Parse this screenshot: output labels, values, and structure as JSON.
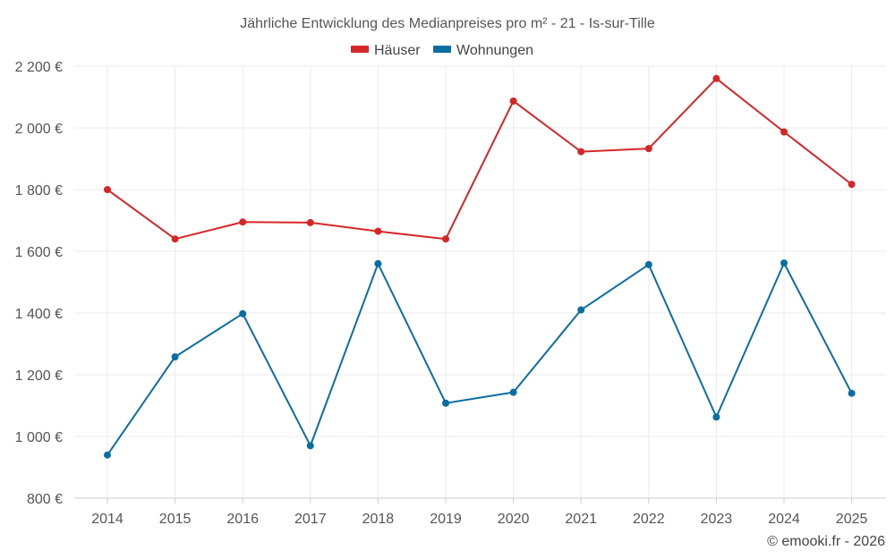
{
  "chart_data": {
    "type": "line",
    "title": "Jährliche Entwicklung des Medianpreises pro m² - 21 - Is-sur-Tille",
    "categories": [
      "2014",
      "2015",
      "2016",
      "2017",
      "2018",
      "2019",
      "2020",
      "2021",
      "2022",
      "2023",
      "2024",
      "2025"
    ],
    "series": [
      {
        "name": "Häuser",
        "color": "#d62728",
        "values": [
          1800,
          1640,
          1695,
          1693,
          1665,
          1640,
          2087,
          1923,
          1933,
          2160,
          1987,
          1817
        ]
      },
      {
        "name": "Wohnungen",
        "color": "#0a6ea3",
        "values": [
          940,
          1258,
          1398,
          970,
          1560,
          1108,
          1143,
          1410,
          1557,
          1063,
          1562,
          1140
        ]
      }
    ],
    "ylim": [
      800,
      2200
    ],
    "yticks": [
      800,
      1000,
      1200,
      1400,
      1600,
      1800,
      2000,
      2200
    ],
    "ytick_labels": [
      "800 €",
      "1 000 €",
      "1 200 €",
      "1 400 €",
      "1 600 €",
      "1 800 €",
      "2 000 €",
      "2 200 €"
    ],
    "xlabel": "",
    "ylabel": "",
    "grid": true,
    "legend_position": "top-center"
  },
  "credit": "© emooki.fr - 2026"
}
